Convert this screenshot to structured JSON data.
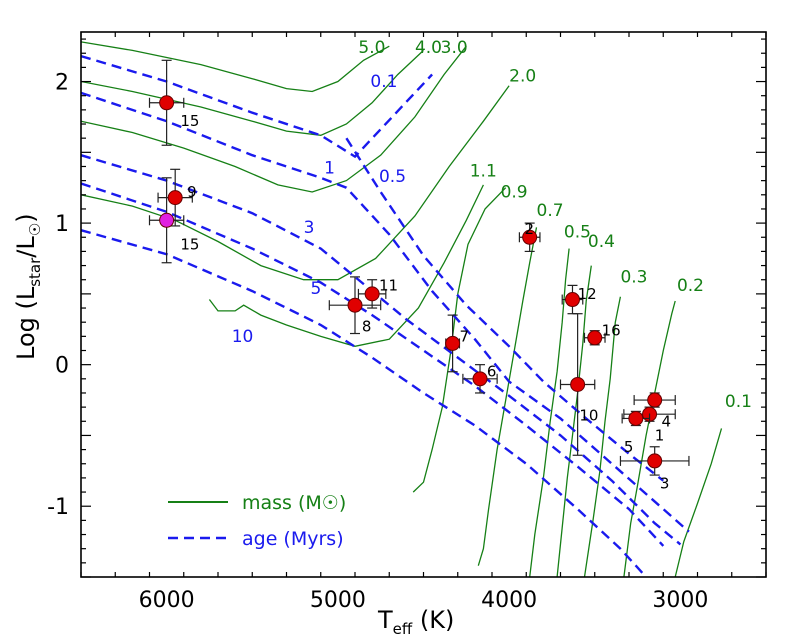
{
  "chart_data": {
    "type": "scatter",
    "title": "",
    "xlabel": {
      "main": "T",
      "sub": "eff",
      "unit": " (K)"
    },
    "ylabel": {
      "main": "Log (L",
      "sub1": "star",
      "mid": "/L",
      "sub2": "☉",
      "end": ")"
    },
    "xlim": [
      6500,
      2500
    ],
    "ylim": [
      -1.5,
      2.35
    ],
    "x_ticks": [
      6000,
      5000,
      4000,
      3000
    ],
    "x_tick_labels": [
      "6000",
      "5000",
      "4000",
      "3000"
    ],
    "y_ticks": [
      2,
      1,
      0,
      -1
    ],
    "y_tick_labels": [
      "2",
      "1",
      "0",
      "-1"
    ],
    "legend": [
      {
        "label": "mass (M☉)",
        "style": "solid",
        "color": "#168016"
      },
      {
        "label": "age (Myrs)",
        "style": "dashed",
        "color": "#1a1aee"
      }
    ],
    "mass_tracks": [
      {
        "label": "5.0",
        "points": [
          [
            6500,
            2.28
          ],
          [
            6200,
            2.22
          ],
          [
            5800,
            2.12
          ],
          [
            5500,
            2.02
          ],
          [
            5300,
            1.95
          ],
          [
            5150,
            1.93
          ],
          [
            5000,
            2.0
          ],
          [
            4850,
            2.15
          ],
          [
            4700,
            2.25
          ]
        ],
        "label_at": [
          4880,
          2.2
        ]
      },
      {
        "label": "4.0",
        "points": [
          [
            6500,
            2.0
          ],
          [
            6200,
            1.93
          ],
          [
            5800,
            1.82
          ],
          [
            5500,
            1.72
          ],
          [
            5300,
            1.65
          ],
          [
            5100,
            1.62
          ],
          [
            4950,
            1.7
          ],
          [
            4800,
            1.85
          ],
          [
            4650,
            2.05
          ],
          [
            4500,
            2.22
          ]
        ],
        "label_at": [
          4550,
          2.2
        ]
      },
      {
        "label": "3.0",
        "points": [
          [
            6500,
            1.72
          ],
          [
            6200,
            1.64
          ],
          [
            5900,
            1.53
          ],
          [
            5600,
            1.4
          ],
          [
            5350,
            1.27
          ],
          [
            5150,
            1.22
          ],
          [
            4950,
            1.3
          ],
          [
            4750,
            1.48
          ],
          [
            4550,
            1.75
          ],
          [
            4380,
            2.05
          ],
          [
            4250,
            2.25
          ]
        ],
        "label_at": [
          4400,
          2.2
        ]
      },
      {
        "label": "2.0",
        "points": [
          [
            6500,
            1.2
          ],
          [
            6200,
            1.12
          ],
          [
            5950,
            1.02
          ],
          [
            5700,
            0.87
          ],
          [
            5450,
            0.7
          ],
          [
            5200,
            0.6
          ],
          [
            5000,
            0.6
          ],
          [
            4780,
            0.75
          ],
          [
            4550,
            1.05
          ],
          [
            4350,
            1.4
          ],
          [
            4150,
            1.72
          ],
          [
            4000,
            1.97
          ]
        ],
        "label_at": [
          4000,
          2.0
        ]
      },
      {
        "label": "1.1",
        "points": [
          [
            5750,
            0.46
          ],
          [
            5700,
            0.38
          ],
          [
            5600,
            0.38
          ],
          [
            5550,
            0.42
          ],
          [
            5450,
            0.35
          ],
          [
            5300,
            0.28
          ],
          [
            5100,
            0.2
          ],
          [
            4900,
            0.13
          ],
          [
            4700,
            0.18
          ],
          [
            4530,
            0.4
          ],
          [
            4380,
            0.72
          ],
          [
            4250,
            1.02
          ],
          [
            4150,
            1.27
          ]
        ],
        "label_at": [
          4230,
          1.33
        ]
      },
      {
        "label": "0.9",
        "points": [
          [
            4560,
            -0.9
          ],
          [
            4500,
            -0.83
          ],
          [
            4450,
            -0.6
          ],
          [
            4390,
            -0.3
          ],
          [
            4340,
            0.1
          ],
          [
            4300,
            0.5
          ],
          [
            4240,
            0.85
          ],
          [
            4140,
            1.1
          ],
          [
            4020,
            1.25
          ]
        ],
        "label_at": [
          4050,
          1.18
        ]
      },
      {
        "label": "0.7",
        "points": [
          [
            4180,
            -1.42
          ],
          [
            4150,
            -1.3
          ],
          [
            4120,
            -1.02
          ],
          [
            4070,
            -0.6
          ],
          [
            4020,
            -0.25
          ],
          [
            3970,
            0.1
          ],
          [
            3920,
            0.45
          ],
          [
            3880,
            0.72
          ],
          [
            3840,
            0.97
          ]
        ],
        "label_at": [
          3840,
          1.05
        ]
      },
      {
        "label": "0.5",
        "points": [
          [
            3880,
            -1.5
          ],
          [
            3850,
            -1.2
          ],
          [
            3800,
            -0.8
          ],
          [
            3760,
            -0.4
          ],
          [
            3720,
            -0.05
          ],
          [
            3690,
            0.3
          ],
          [
            3670,
            0.6
          ],
          [
            3650,
            0.82
          ]
        ],
        "label_at": [
          3680,
          0.9
        ]
      },
      {
        "label": "0.4",
        "points": [
          [
            3720,
            -1.5
          ],
          [
            3690,
            -1.15
          ],
          [
            3660,
            -0.8
          ],
          [
            3630,
            -0.5
          ],
          [
            3600,
            -0.2
          ],
          [
            3570,
            0.15
          ],
          [
            3550,
            0.45
          ],
          [
            3520,
            0.7
          ]
        ],
        "label_at": [
          3540,
          0.83
        ]
      },
      {
        "label": "0.3",
        "points": [
          [
            3560,
            -1.5
          ],
          [
            3510,
            -1.1
          ],
          [
            3470,
            -0.75
          ],
          [
            3440,
            -0.4
          ],
          [
            3410,
            -0.1
          ],
          [
            3380,
            0.3
          ],
          [
            3350,
            0.48
          ]
        ],
        "label_at": [
          3350,
          0.58
        ]
      },
      {
        "label": "0.2",
        "points": [
          [
            3330,
            -1.5
          ],
          [
            3290,
            -1.12
          ],
          [
            3250,
            -0.85
          ],
          [
            3200,
            -0.5
          ],
          [
            3150,
            -0.2
          ],
          [
            3100,
            0.1
          ],
          [
            3050,
            0.36
          ],
          [
            3030,
            0.45
          ]
        ],
        "label_at": [
          3020,
          0.52
        ]
      },
      {
        "label": "0.1",
        "points": [
          [
            3030,
            -1.5
          ],
          [
            2980,
            -1.25
          ],
          [
            2900,
            -0.98
          ],
          [
            2820,
            -0.7
          ],
          [
            2760,
            -0.45
          ]
        ],
        "label_at": [
          2740,
          -0.3
        ]
      }
    ],
    "age_isochrones": [
      {
        "label": "0.1",
        "points": [
          [
            6500,
            2.18
          ],
          [
            6000,
            2.0
          ],
          [
            5500,
            1.78
          ],
          [
            5100,
            1.62
          ],
          [
            4900,
            1.47
          ],
          [
            4450,
            2.05
          ]
        ],
        "label_at": [
          4810,
          1.96
        ]
      },
      {
        "label": "1",
        "points": [
          [
            6500,
            1.92
          ],
          [
            6000,
            1.72
          ],
          [
            5500,
            1.48
          ],
          [
            5100,
            1.32
          ],
          [
            4950,
            1.25
          ],
          [
            4700,
            0.92
          ],
          [
            4450,
            0.52
          ],
          [
            4200,
            0.18
          ],
          [
            4000,
            -0.12
          ],
          [
            3700,
            -0.38
          ],
          [
            3400,
            -0.7
          ],
          [
            3100,
            -1.02
          ],
          [
            2950,
            -1.18
          ]
        ],
        "label_at": [
          5080,
          1.35
        ]
      },
      {
        "label": "0.5",
        "points": [
          [
            4950,
            1.6
          ],
          [
            4750,
            1.22
          ],
          [
            4500,
            0.77
          ],
          [
            4250,
            0.42
          ],
          [
            4000,
            0.13
          ],
          [
            3800,
            -0.12
          ],
          [
            3550,
            -0.38
          ],
          [
            3300,
            -0.63
          ],
          [
            3100,
            -0.82
          ]
        ],
        "label_at": [
          4760,
          1.29
        ]
      },
      {
        "label": "3",
        "points": [
          [
            6500,
            1.48
          ],
          [
            6000,
            1.3
          ],
          [
            5500,
            1.07
          ],
          [
            5100,
            0.82
          ],
          [
            4900,
            0.62
          ],
          [
            4600,
            0.32
          ],
          [
            4300,
            0.05
          ],
          [
            4000,
            -0.22
          ],
          [
            3700,
            -0.5
          ],
          [
            3400,
            -0.82
          ],
          [
            3150,
            -1.12
          ],
          [
            3000,
            -1.27
          ]
        ],
        "label_at": [
          5200,
          0.93
        ]
      },
      {
        "label": "5",
        "points": [
          [
            6500,
            1.28
          ],
          [
            6000,
            1.08
          ],
          [
            5500,
            0.82
          ],
          [
            5100,
            0.58
          ],
          [
            4800,
            0.35
          ],
          [
            4500,
            0.1
          ],
          [
            4200,
            -0.15
          ],
          [
            3900,
            -0.43
          ],
          [
            3600,
            -0.72
          ],
          [
            3300,
            -1.02
          ],
          [
            3100,
            -1.28
          ]
        ],
        "label_at": [
          5160,
          0.5
        ]
      },
      {
        "label": "10",
        "points": [
          [
            6500,
            0.95
          ],
          [
            6000,
            0.78
          ],
          [
            5500,
            0.52
          ],
          [
            5100,
            0.28
          ],
          [
            4800,
            0.05
          ],
          [
            4500,
            -0.2
          ],
          [
            4200,
            -0.43
          ],
          [
            3900,
            -0.7
          ],
          [
            3600,
            -1.02
          ],
          [
            3350,
            -1.3
          ],
          [
            3200,
            -1.5
          ]
        ],
        "label_at": [
          5620,
          0.16
        ]
      }
    ],
    "stars": [
      {
        "id": "15",
        "teff": 6000,
        "teff_err": 100,
        "logL": 1.85,
        "logL_err": 0.3,
        "color": "#e00000",
        "label_at": [
          5920,
          1.72
        ]
      },
      {
        "id": "9",
        "teff": 5950,
        "teff_err": 100,
        "logL": 1.18,
        "logL_err": 0.2,
        "color": "#e00000",
        "label_at": [
          5880,
          1.22
        ]
      },
      {
        "id": "15",
        "teff": 6000,
        "teff_err": 100,
        "logL": 1.02,
        "logL_err": 0.3,
        "color": "#e020e0",
        "label_at": [
          5920,
          0.85
        ]
      },
      {
        "id": "2",
        "teff": 3880,
        "teff_err": 60,
        "logL": 0.9,
        "logL_err": 0.1,
        "color": "#e00000",
        "label_at": [
          3910,
          0.96
        ]
      },
      {
        "id": "11",
        "teff": 4800,
        "teff_err": 80,
        "logL": 0.5,
        "logL_err": 0.1,
        "color": "#e00000",
        "label_at": [
          4760,
          0.56
        ]
      },
      {
        "id": "8",
        "teff": 4900,
        "teff_err": 150,
        "logL": 0.42,
        "logL_err": 0.2,
        "color": "#e00000",
        "label_at": [
          4860,
          0.27
        ]
      },
      {
        "id": "12",
        "teff": 3630,
        "teff_err": 60,
        "logL": 0.46,
        "logL_err": 0.1,
        "color": "#e00000",
        "label_at": [
          3600,
          0.5
        ]
      },
      {
        "id": "16",
        "teff": 3500,
        "teff_err": 60,
        "logL": 0.19,
        "logL_err": 0.05,
        "color": "#e00000",
        "label_at": [
          3460,
          0.24
        ]
      },
      {
        "id": "7",
        "teff": 4330,
        "teff_err": 40,
        "logL": 0.15,
        "logL_err": 0.2,
        "color": "#e00000",
        "label_at": [
          4290,
          0.2
        ]
      },
      {
        "id": "6",
        "teff": 4170,
        "teff_err": 100,
        "logL": -0.1,
        "logL_err": 0.1,
        "color": "#e00000",
        "label_at": [
          4130,
          -0.05
        ]
      },
      {
        "id": "10",
        "teff": 3600,
        "teff_err": 100,
        "logL": -0.14,
        "logL_err": 0.5,
        "color": "#e00000",
        "label_at": [
          3590,
          -0.36
        ]
      },
      {
        "id": "4",
        "teff": 3150,
        "teff_err": 120,
        "logL": -0.25,
        "logL_err": 0.05,
        "color": "#e00000",
        "label_at": [
          3110,
          -0.4
        ]
      },
      {
        "id": "1",
        "teff": 3180,
        "teff_err": 150,
        "logL": -0.35,
        "logL_err": 0.05,
        "color": "#e00000",
        "label_at": [
          3150,
          -0.5
        ]
      },
      {
        "id": "5",
        "teff": 3260,
        "teff_err": 80,
        "logL": -0.38,
        "logL_err": 0.05,
        "color": "#e00000",
        "label_at": [
          3330,
          -0.58
        ]
      },
      {
        "id": "3",
        "teff": 3150,
        "teff_err": 200,
        "logL": -0.68,
        "logL_err": 0.1,
        "color": "#e00000",
        "label_at": [
          3120,
          -0.84
        ]
      }
    ]
  }
}
